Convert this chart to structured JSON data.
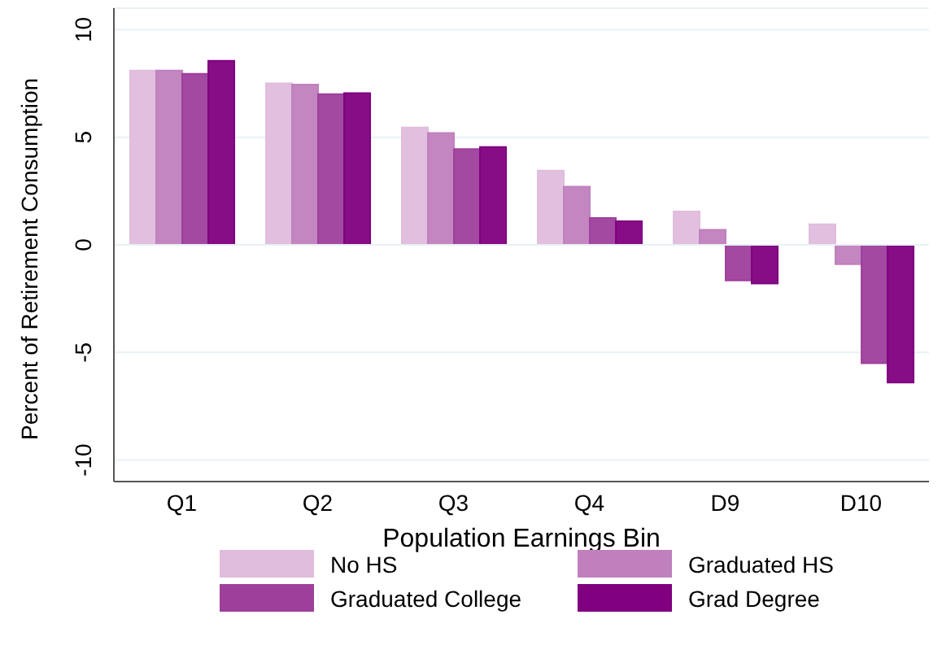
{
  "chart_data": {
    "type": "bar",
    "xlabel": "Population Earnings Bin",
    "ylabel": "Percent of Retirement Consumption",
    "categories": [
      "Q1",
      "Q2",
      "Q3",
      "Q4",
      "D9",
      "D10"
    ],
    "series": [
      {
        "name": "No HS",
        "color": "#e0bcdd",
        "values": [
          8.1,
          7.5,
          5.45,
          3.45,
          1.55,
          0.95
        ]
      },
      {
        "name": "Graduated HS",
        "color": "#c080bd",
        "values": [
          8.1,
          7.45,
          5.2,
          2.7,
          0.7,
          -0.9
        ]
      },
      {
        "name": "Graduated College",
        "color": "#9e3f9c",
        "values": [
          7.95,
          7.0,
          4.45,
          1.25,
          -1.65,
          -5.5
        ]
      },
      {
        "name": "Grad Degree",
        "color": "#800080",
        "values": [
          8.55,
          7.05,
          4.55,
          1.1,
          -1.8,
          -6.4
        ]
      }
    ],
    "ylim": [
      -11,
      11
    ],
    "yticks": [
      -10,
      -5,
      0,
      5,
      10
    ],
    "grid": "y",
    "legend": "bottom"
  }
}
